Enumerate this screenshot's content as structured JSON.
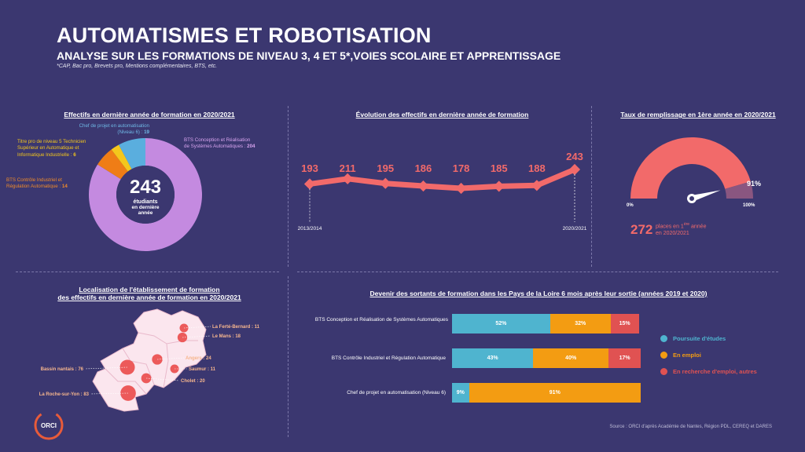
{
  "header": {
    "title": "AUTOMATISMES ET ROBOTISATION",
    "subtitle": "ANALYSE SUR LES FORMATIONS DE NIVEAU 3, 4 ET 5*,VOIES SCOLAIRE ET APPRENTISSAGE",
    "footnote": "*CAP, Bac pro, Brevets pro, Mentions complémentaires, BTS, etc."
  },
  "panels": {
    "donut_title": "Effectifs en dernière année de formation en 2020/2021",
    "line_title": "Évolution des effectifs en dernière année de formation",
    "gauge_title": "Taux de remplissage en 1ère année en 2020/2021",
    "map_title_1": "Localisation de l'établissement de formation",
    "map_title_2": "des effectifs en dernière année de formation en 2020/2021",
    "bars_title": "Devenir des sortants de formation dans les Pays de la Loire 6 mois après leur sortie (années 2019 et 2020)"
  },
  "donut": {
    "center_value": "243",
    "center_line1": "étudiants",
    "center_line2": "en dernière",
    "center_line3": "année",
    "label_chef_1": "Chef de projet en automatisation",
    "label_chef_2": "(Niveau 6) : ",
    "label_chef_val": "19",
    "label_bts_1": "BTS Conception et Réalisation",
    "label_bts_2": "de Systèmes Automatiques : ",
    "label_bts_val": "204",
    "label_titre_1": "Titre pro de niveau 5 Technicien",
    "label_titre_2": "Supérieur en Automatique et",
    "label_titre_3": "Informatique Industrielle : ",
    "label_titre_val": "6",
    "label_cira_1": "BTS Contrôle Industriel et",
    "label_cira_2": "Régulation Automatique : ",
    "label_cira_val": "14"
  },
  "gauge": {
    "value_text": "91%",
    "min_label": "0%",
    "max_label": "100%",
    "places_value": "272",
    "places_text_1": "places en 1",
    "places_sup": "ère",
    "places_text_1b": " année",
    "places_text_2": "en 2020/2021"
  },
  "map": {
    "cities": [
      {
        "name": "La Ferté-Bernard : 11",
        "value": 11
      },
      {
        "name": "Le Mans : 18",
        "value": 18
      },
      {
        "name": "Angers : 24",
        "value": 24
      },
      {
        "name": "Saumur : 11",
        "value": 11
      },
      {
        "name": "Cholet : 20",
        "value": 20
      },
      {
        "name": "Bassin nantais : 76",
        "value": 76
      },
      {
        "name": "La Roche-sur-Yon : 83",
        "value": 83
      }
    ],
    "logo_text": "ORCI"
  },
  "legend": {
    "poursuite": "Poursuite d'études",
    "emploi": "En emploi",
    "recherche": "En recherche d'emploi, autres"
  },
  "source": "Source : ORCI d'après Académie de Nantes, Région PDL, CEREQ et DARES",
  "colors": {
    "background": "#3b3770",
    "donut_bts": "#c48ae0",
    "donut_chef": "#5aaede",
    "donut_titre": "#f4c71c",
    "donut_cira": "#ef7d16",
    "line": "#f26a6a",
    "gauge": "#f26a6a",
    "gauge_rest": "#8a5680",
    "poursuite": "#4fb4cf",
    "emploi": "#f39c12",
    "recherche": "#e05252"
  },
  "chart_data": [
    {
      "type": "pie",
      "title": "Effectifs en dernière année de formation en 2020/2021",
      "categories": [
        "BTS Conception et Réalisation de Systèmes Automatiques",
        "BTS Contrôle Industriel et Régulation Automatique",
        "Titre pro de niveau 5 Technicien Supérieur en Automatique et Informatique Industrielle",
        "Chef de projet en automatisation (Niveau 6)"
      ],
      "values": [
        204,
        14,
        6,
        19
      ],
      "total": 243
    },
    {
      "type": "line",
      "title": "Évolution des effectifs en dernière année de formation",
      "x": [
        "2013/2014",
        "2014/2015",
        "2015/2016",
        "2016/2017",
        "2017/2018",
        "2018/2019",
        "2019/2020",
        "2020/2021"
      ],
      "x_tick_labels": [
        "2013/2014",
        "2020/2021"
      ],
      "values": [
        193,
        211,
        195,
        186,
        178,
        185,
        188,
        243
      ]
    },
    {
      "type": "bar",
      "subtype": "stacked-horizontal-100",
      "title": "Devenir des sortants de formation dans les Pays de la Loire 6 mois après leur sortie (années 2019 et 2020)",
      "categories": [
        "BTS Conception et Réalisation de Systèmes Automatiques",
        "BTS Contrôle Industriel et Régulation Automatique",
        "Chef de projet en automatisation (Niveau 6)"
      ],
      "series": [
        {
          "name": "Poursuite d'études",
          "values": [
            52,
            43,
            9
          ]
        },
        {
          "name": "En emploi",
          "values": [
            32,
            40,
            91
          ]
        },
        {
          "name": "En recherche d'emploi, autres",
          "values": [
            15,
            17,
            0
          ]
        }
      ],
      "legend": "right"
    },
    {
      "type": "gauge",
      "title": "Taux de remplissage en 1ère année en 2020/2021",
      "value": 91,
      "range": [
        0,
        100
      ]
    }
  ]
}
